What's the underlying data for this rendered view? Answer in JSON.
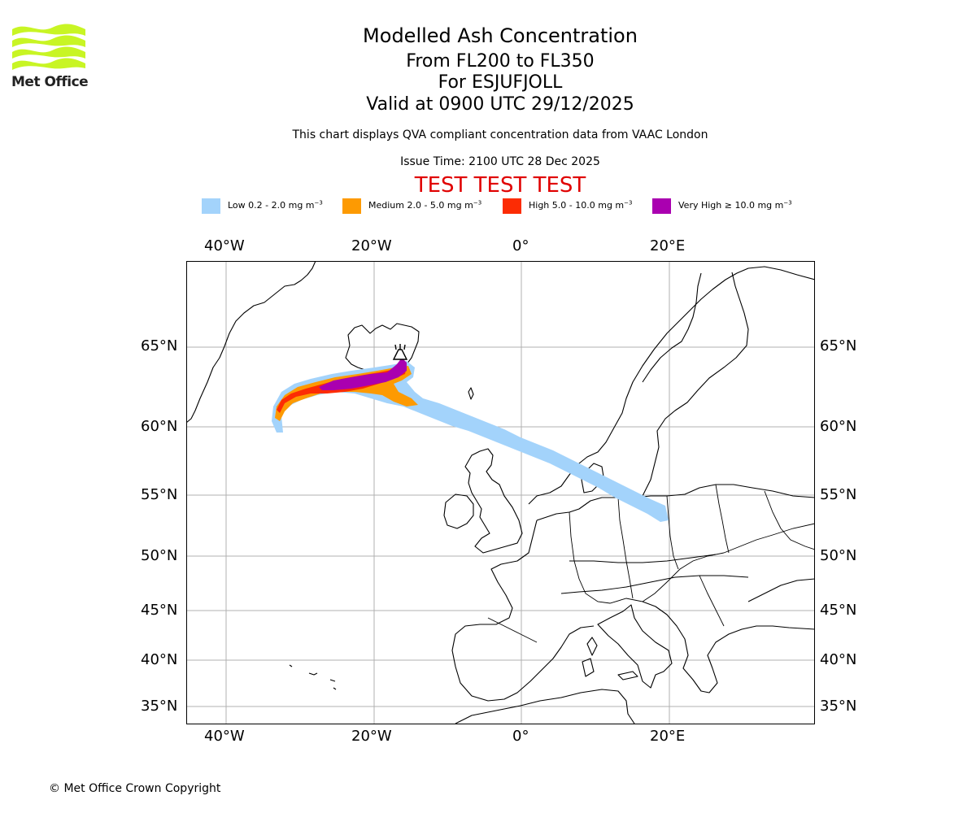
{
  "brand": {
    "name": "Met Office",
    "logo_color": "#c8f524"
  },
  "header": {
    "title": "Modelled Ash Concentration",
    "levels": "From FL200 to FL350",
    "volcano": "For ESJUFJOLL",
    "valid": "Valid at 0900 UTC 29/12/2025",
    "subtitle": "This chart displays QVA compliant concentration data from VAAC London",
    "issue": "Issue Time: 2100 UTC 28 Dec 2025",
    "test_banner": "TEST TEST TEST"
  },
  "legend": [
    {
      "label": "Low 0.2 - 2.0 mg m",
      "exp": "−3",
      "color": "#a3d3fb"
    },
    {
      "label": "Medium 2.0 - 5.0 mg m",
      "exp": "−3",
      "color": "#fd9a02"
    },
    {
      "label": "High 5.0 - 10.0 mg m",
      "exp": "−3",
      "color": "#fc2c04"
    },
    {
      "label": "Very High  ≥  10.0 mg m",
      "exp": "−3",
      "color": "#aa00b0"
    }
  ],
  "axes": {
    "lon_ticks": [
      "40°W",
      "20°W",
      "0°",
      "20°E"
    ],
    "lat_ticks": [
      "65°N",
      "60°N",
      "55°N",
      "50°N",
      "45°N",
      "40°N",
      "35°N"
    ]
  },
  "footer": {
    "copyright": "© Met Office Crown Copyright"
  }
}
